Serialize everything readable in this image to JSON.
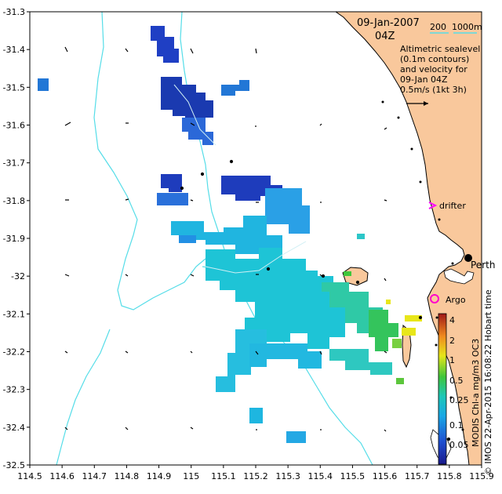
{
  "map": {
    "date_line1": "09-Jan-2007",
    "date_line2": "04Z",
    "bathy_label_1": "200",
    "bathy_label_2": "1000m",
    "legend_lines": [
      "Altimetric sealevel",
      "(0.1m contours)",
      "and velocity for",
      "09-Jan 04Z",
      "0.5m/s (1kt 3h)"
    ],
    "drifter_label": "drifter",
    "argo_label": "Argo",
    "city_label": "Perth",
    "credit_text": "© IMOS 22-Apr-2015 16:08:22 Hobart time",
    "product_text": "MODIS Chl-a mg/m3 OC3",
    "x_ticks": [
      "114.5",
      "114.6",
      "114.7",
      "114.8",
      "114.9",
      "115",
      "115.1",
      "115.2",
      "115.3",
      "115.4",
      "115.5",
      "115.6",
      "115.7",
      "115.8",
      "115.9"
    ],
    "y_ticks": [
      "-31.3",
      "-31.4",
      "-31.5",
      "-31.6",
      "-31.7",
      "-31.8",
      "-31.9",
      "-32",
      "-32.1",
      "-32.2",
      "-32.3",
      "-32.4",
      "-32.5"
    ],
    "colorbar_ticks": [
      "4",
      "2",
      "1",
      "0.5",
      "0.25",
      "0.1",
      "0.05"
    ],
    "colors": {
      "land": "#f9c89c",
      "bathy": "#55dde8",
      "drifter": "#ff00ff",
      "argo": "#ff00cc"
    }
  }
}
